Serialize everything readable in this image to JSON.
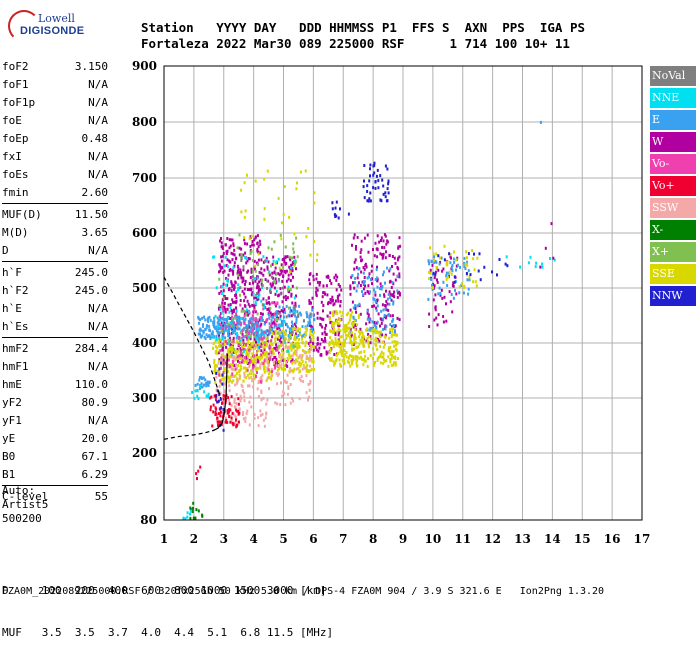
{
  "logo": {
    "line1": "Lowell",
    "line2": "DIGISONDE"
  },
  "header": {
    "line1": "Station   YYYY DAY   DDD HHMMSS P1  FFS S  AXN  PPS  IGA PS",
    "line2": "Fortaleza 2022 Mar30 089 225000 RSF      1 714 100 10+ 11"
  },
  "params": [
    {
      "name": "foF2",
      "value": "3.150"
    },
    {
      "name": "foF1",
      "value": "N/A"
    },
    {
      "name": "foF1p",
      "value": "N/A"
    },
    {
      "name": "foE",
      "value": "N/A"
    },
    {
      "name": "foEp",
      "value": "0.48"
    },
    {
      "name": "fxI",
      "value": "N/A"
    },
    {
      "name": "foEs",
      "value": "N/A"
    },
    {
      "name": "fmin",
      "value": "2.60"
    },
    {
      "name": "MUF(D)",
      "value": "11.50",
      "sep": true
    },
    {
      "name": "M(D)",
      "value": "3.65"
    },
    {
      "name": "D",
      "value": "N/A"
    },
    {
      "name": "h`F",
      "value": "245.0",
      "sep": true
    },
    {
      "name": "h`F2",
      "value": "245.0"
    },
    {
      "name": "h`E",
      "value": "N/A"
    },
    {
      "name": "h`Es",
      "value": "N/A"
    },
    {
      "name": "hmF2",
      "value": "284.4",
      "sep": true
    },
    {
      "name": "hmF1",
      "value": "N/A"
    },
    {
      "name": "hmE",
      "value": "110.0"
    },
    {
      "name": "yF2",
      "value": "80.9"
    },
    {
      "name": "yF1",
      "value": "N/A"
    },
    {
      "name": "yE",
      "value": "20.0"
    },
    {
      "name": "B0",
      "value": "67.1"
    },
    {
      "name": "B1",
      "value": "6.29"
    },
    {
      "name": "C-level",
      "value": "55",
      "sep": true
    }
  ],
  "auto": {
    "line1": "Auto:",
    "line2": "Artist5",
    "line3": "500200"
  },
  "footer": {
    "line1": "D     100  200  400  600  800 1000 1500 3000 [km]",
    "line2": "MUF   3.5  3.5  3.7  4.0  4.4  5.1  6.8 11.5 [MHz]",
    "line3": "FZA0M_2022089225000.RSF / 320fx256h 50 kHz 5.0 km / DPS-4 FZA0M 904 / 3.9 S 321.6 E   Ion2Png 1.3.20"
  },
  "legend": [
    {
      "label": "NoVal",
      "color": "#7f7f7f"
    },
    {
      "label": "NNE",
      "color": "#00e0f0"
    },
    {
      "label": "E",
      "color": "#3aa0f0"
    },
    {
      "label": "W",
      "color": "#b000a0"
    },
    {
      "label": "Vo-",
      "color": "#f040b0"
    },
    {
      "label": "Vo+",
      "color": "#f00030"
    },
    {
      "label": "SSW",
      "color": "#f5a8a8"
    },
    {
      "label": "X-",
      "color": "#008000"
    },
    {
      "label": "X+",
      "color": "#80c050"
    },
    {
      "label": "SSE",
      "color": "#d8d800"
    },
    {
      "label": "NNW",
      "color": "#2020d0"
    }
  ],
  "chart_data": {
    "type": "scatter",
    "title": "",
    "xlabel": "",
    "ylabel": "",
    "xlim": [
      1,
      17
    ],
    "ylim": [
      80,
      900
    ],
    "x_ticks": [
      1,
      2,
      3,
      4,
      5,
      6,
      7,
      8,
      9,
      10,
      11,
      12,
      13,
      14,
      15,
      16,
      17
    ],
    "y_ticks": [
      80,
      200,
      300,
      400,
      500,
      600,
      700,
      800,
      900
    ],
    "grid": true,
    "legend_position": "right",
    "traces": [
      {
        "name": "O-trace",
        "style": "solid",
        "color": "#000000",
        "x": [
          2.62,
          2.8,
          2.95,
          3.03,
          3.08,
          3.1,
          3.12
        ],
        "y": [
          240,
          245,
          255,
          275,
          305,
          340,
          380
        ]
      },
      {
        "name": "E-layer",
        "style": "dashed",
        "color": "#000000",
        "x": [
          1.0,
          1.5,
          2.0,
          2.4,
          2.7
        ],
        "y": [
          225,
          230,
          233,
          237,
          242
        ]
      },
      {
        "name": "profile",
        "style": "dashed",
        "color": "#000000",
        "x": [
          1.0,
          1.5,
          2.0,
          2.5,
          2.9
        ],
        "y": [
          520,
          470,
          420,
          365,
          300
        ]
      }
    ],
    "clusters": [
      {
        "dir": "W",
        "x": [
          2.8,
          4.2
        ],
        "y": [
          360,
          600
        ],
        "n": 380
      },
      {
        "dir": "W",
        "x": [
          4.2,
          5.4
        ],
        "y": [
          360,
          560
        ],
        "n": 220
      },
      {
        "dir": "W",
        "x": [
          5.8,
          6.9
        ],
        "y": [
          380,
          530
        ],
        "n": 140
      },
      {
        "dir": "W",
        "x": [
          7.2,
          8.9
        ],
        "y": [
          400,
          600
        ],
        "n": 200
      },
      {
        "dir": "W",
        "x": [
          9.8,
          10.8
        ],
        "y": [
          430,
          560
        ],
        "n": 50
      },
      {
        "dir": "E",
        "x": [
          2.1,
          4.4
        ],
        "y": [
          410,
          450
        ],
        "n": 220
      },
      {
        "dir": "E",
        "x": [
          4.4,
          6.0
        ],
        "y": [
          410,
          470
        ],
        "n": 90
      },
      {
        "dir": "E",
        "x": [
          7.2,
          8.8
        ],
        "y": [
          420,
          540
        ],
        "n": 90
      },
      {
        "dir": "E",
        "x": [
          9.8,
          11.2
        ],
        "y": [
          480,
          560
        ],
        "n": 50
      },
      {
        "dir": "SSE",
        "x": [
          2.6,
          4.6
        ],
        "y": [
          330,
          410
        ],
        "n": 260
      },
      {
        "dir": "SSE",
        "x": [
          4.6,
          6.0
        ],
        "y": [
          350,
          430
        ],
        "n": 160
      },
      {
        "dir": "SSE",
        "x": [
          6.5,
          7.5
        ],
        "y": [
          360,
          460
        ],
        "n": 180
      },
      {
        "dir": "SSE",
        "x": [
          7.5,
          8.8
        ],
        "y": [
          360,
          430
        ],
        "n": 130
      },
      {
        "dir": "SSE",
        "x": [
          3.5,
          6.2
        ],
        "y": [
          520,
          720
        ],
        "n": 40
      },
      {
        "dir": "SSE",
        "x": [
          9.8,
          11.5
        ],
        "y": [
          500,
          580
        ],
        "n": 40
      },
      {
        "dir": "SSW",
        "x": [
          2.7,
          4.5
        ],
        "y": [
          250,
          380
        ],
        "n": 150
      },
      {
        "dir": "SSW",
        "x": [
          4.5,
          5.9
        ],
        "y": [
          290,
          400
        ],
        "n": 80
      },
      {
        "dir": "Vo+",
        "x": [
          2.5,
          3.5
        ],
        "y": [
          250,
          310
        ],
        "n": 80
      },
      {
        "dir": "Vo-",
        "x": [
          2.8,
          4.8
        ],
        "y": [
          330,
          480
        ],
        "n": 110
      },
      {
        "dir": "NNE",
        "x": [
          2.6,
          5.4
        ],
        "y": [
          380,
          560
        ],
        "n": 90
      },
      {
        "dir": "X+",
        "x": [
          2.8,
          5.5
        ],
        "y": [
          380,
          600
        ],
        "n": 70
      },
      {
        "dir": "X-",
        "x": [
          1.8,
          2.3
        ],
        "y": [
          85,
          115
        ],
        "n": 12
      },
      {
        "dir": "NNW",
        "x": [
          7.6,
          8.5
        ],
        "y": [
          660,
          730
        ],
        "n": 45
      },
      {
        "dir": "NNW",
        "x": [
          6.6,
          7.2
        ],
        "y": [
          625,
          660
        ],
        "n": 10
      },
      {
        "dir": "NNW",
        "x": [
          9.8,
          12.5
        ],
        "y": [
          510,
          570
        ],
        "n": 20
      },
      {
        "dir": "NNW",
        "x": [
          2.7,
          3.0
        ],
        "y": [
          240,
          380
        ],
        "n": 15
      },
      {
        "dir": "NoVal",
        "x": [
          3.5,
          6.0
        ],
        "y": [
          400,
          560
        ],
        "n": 30
      },
      {
        "dir": "NNE",
        "x": [
          12.2,
          14.2
        ],
        "y": [
          540,
          560
        ],
        "n": 10
      },
      {
        "dir": "W",
        "x": [
          13.5,
          14.2
        ],
        "y": [
          540,
          640
        ],
        "n": 4
      },
      {
        "dir": "E",
        "x": [
          13.5,
          13.6
        ],
        "y": [
          800,
          810
        ],
        "n": 1
      }
    ],
    "bands": [
      {
        "dir": "E",
        "x": [
          2.0,
          2.5
        ],
        "y": [
          320,
          340
        ],
        "n": 25
      },
      {
        "dir": "NNE",
        "x": [
          1.9,
          2.6
        ],
        "y": [
          300,
          325
        ],
        "n": 12
      },
      {
        "dir": "Vo+",
        "x": [
          1.9,
          2.2
        ],
        "y": [
          150,
          180
        ],
        "n": 4
      },
      {
        "dir": "NNE",
        "x": [
          1.6,
          1.9
        ],
        "y": [
          85,
          100
        ],
        "n": 6
      }
    ]
  }
}
